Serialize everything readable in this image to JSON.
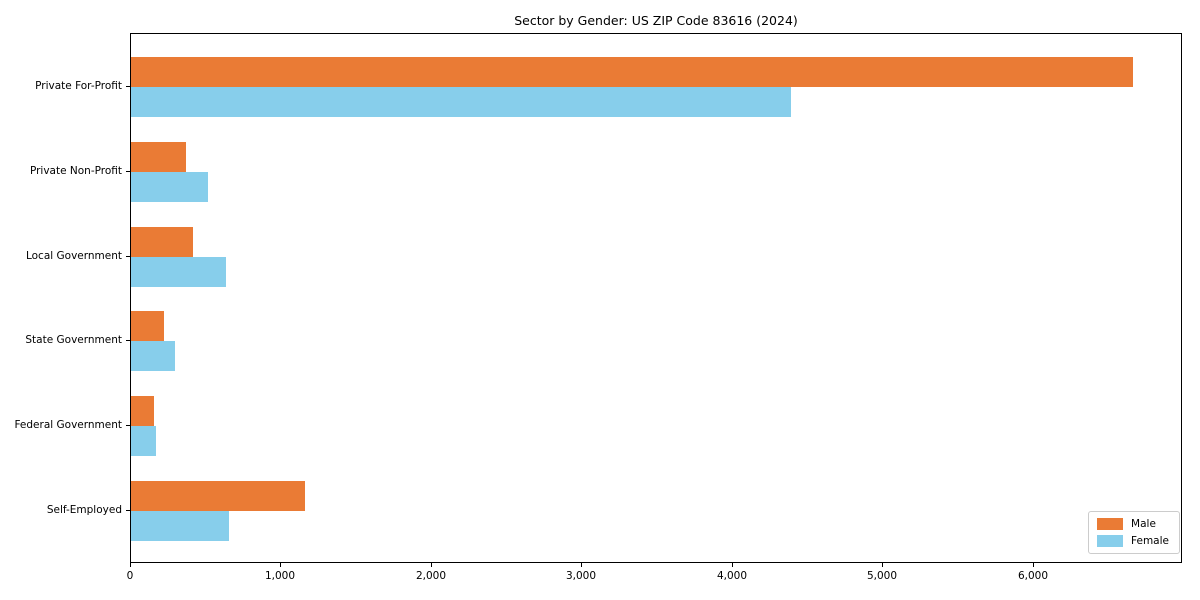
{
  "chart_data": {
    "type": "bar",
    "orientation": "horizontal",
    "title": "Sector by Gender: US ZIP Code 83616 (2024)",
    "categories": [
      "Private For-Profit",
      "Private Non-Profit",
      "Local Government",
      "State Government",
      "Federal Government",
      "Self-Employed"
    ],
    "series": [
      {
        "name": "Male",
        "color": "#EA7B35",
        "values": [
          6660,
          365,
          410,
          220,
          155,
          1155
        ]
      },
      {
        "name": "Female",
        "color": "#87CEEB",
        "values": [
          4385,
          510,
          630,
          295,
          165,
          650
        ]
      }
    ],
    "xlim": [
      0,
      6980
    ],
    "xticks": [
      0,
      1000,
      2000,
      3000,
      4000,
      5000,
      6000
    ],
    "xtick_labels": [
      "0",
      "1,000",
      "2,000",
      "3,000",
      "4,000",
      "5,000",
      "6,000"
    ],
    "xlabel": "",
    "ylabel": "",
    "grid": false,
    "legend_position": "lower right"
  }
}
